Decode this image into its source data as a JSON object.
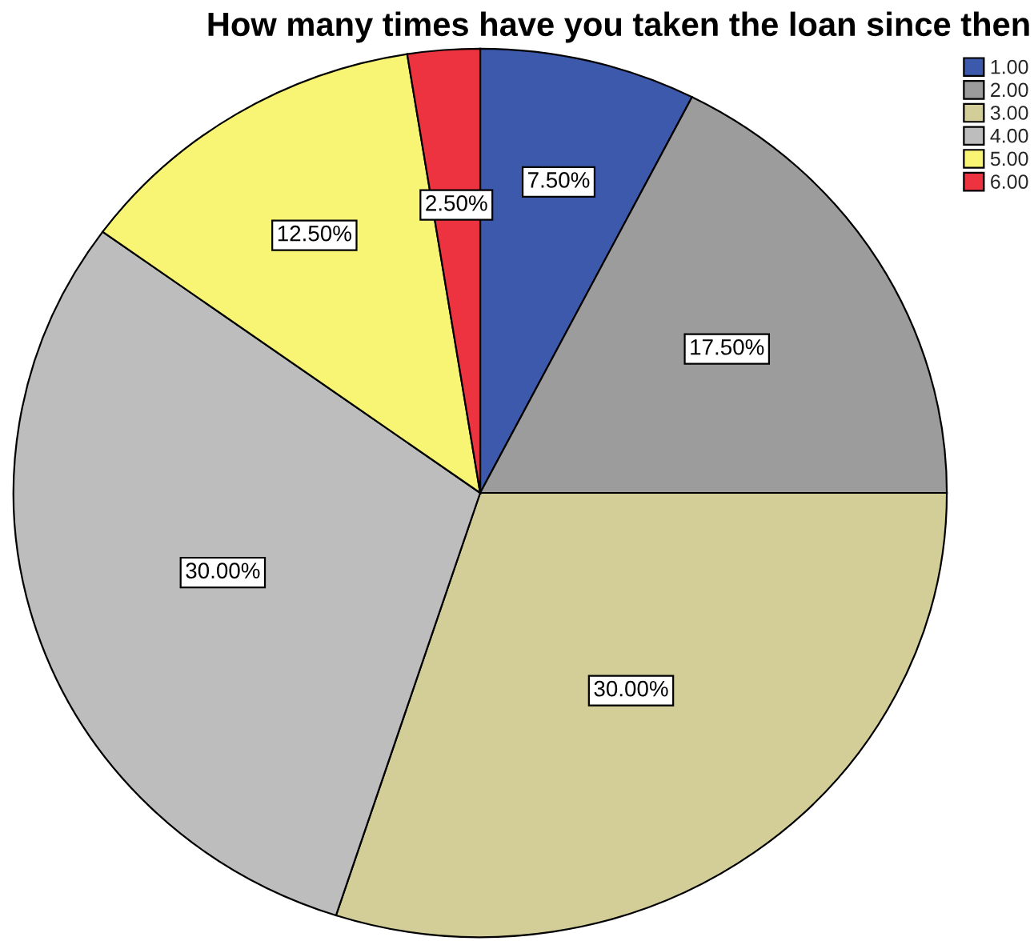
{
  "chart_data": {
    "type": "pie",
    "title": "How many times have you taken the loan since then",
    "categories": [
      "1.00",
      "2.00",
      "3.00",
      "4.00",
      "5.00",
      "6.00"
    ],
    "values": [
      7.5,
      17.5,
      30,
      30,
      12.5,
      2.5
    ],
    "colors": [
      "#3d59ab",
      "#9c9c9c",
      "#d3ce97",
      "#bdbdbd",
      "#f8f574",
      "#ee3340"
    ],
    "value_labels": [
      "7.50%",
      "17.50%",
      "30.00%",
      "30.00%",
      "12.50%",
      "2.50%"
    ],
    "legend": "top right"
  }
}
